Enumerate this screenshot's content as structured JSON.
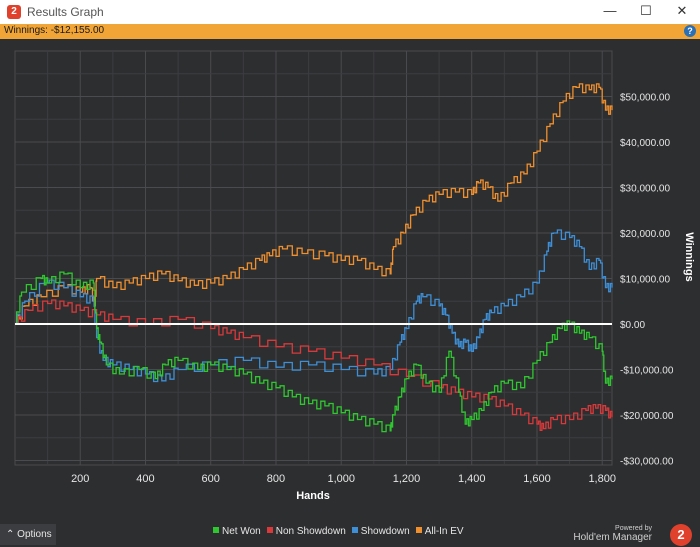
{
  "window": {
    "title": "Results Graph",
    "minimize_glyph": "—",
    "maximize_glyph": "☐",
    "close_glyph": "✕",
    "app_icon": "2"
  },
  "summary_bar": {
    "label": "Winnings:",
    "value": "-$12,155.00",
    "help_glyph": "?"
  },
  "options_label": "Options",
  "options_glyph": "⌃",
  "powered_by": "Powered by",
  "brand": "Hold'em Manager",
  "brand_logo_text": "2",
  "icons": {
    "app": "hem2-logo-icon",
    "help": "help-icon",
    "options": "chevron-up-icon",
    "brand": "hem2-logo-icon"
  },
  "chart_data": {
    "type": "line",
    "xlabel": "Hands",
    "ylabel": "Winnings",
    "xlim": [
      0,
      1830
    ],
    "ylim": [
      -31000,
      60000
    ],
    "x_ticks": [
      200,
      400,
      600,
      800,
      1000,
      1200,
      1400,
      1600,
      1800
    ],
    "x_tick_labels": [
      "200",
      "400",
      "600",
      "800",
      "1,000",
      "1,200",
      "1,400",
      "1,600",
      "1,800"
    ],
    "y_ticks": [
      50000,
      40000,
      30000,
      20000,
      10000,
      0,
      -10000,
      -20000,
      -30000
    ],
    "y_tick_labels": [
      "$50,000.00",
      "$40,000.00",
      "$30,000.00",
      "$20,000.00",
      "$10,000.00",
      "$0.00",
      "-$10,000.00",
      "-$20,000.00",
      "-$30,000.00"
    ],
    "grid": true,
    "background": "#2d2e30",
    "zero_line_color": "#ffffff",
    "series": [
      {
        "name": "All-In EV",
        "color": "#ef8f2e",
        "points": [
          [
            0,
            0
          ],
          [
            30,
            4000
          ],
          [
            80,
            6000
          ],
          [
            150,
            8000
          ],
          [
            200,
            7000
          ],
          [
            230,
            8000
          ],
          [
            245,
            4000
          ],
          [
            250,
            10000
          ],
          [
            300,
            8000
          ],
          [
            350,
            9000
          ],
          [
            400,
            10000
          ],
          [
            450,
            11000
          ],
          [
            500,
            9500
          ],
          [
            550,
            8500
          ],
          [
            600,
            9000
          ],
          [
            650,
            10000
          ],
          [
            700,
            12000
          ],
          [
            750,
            14000
          ],
          [
            780,
            15000
          ],
          [
            820,
            16500
          ],
          [
            880,
            15500
          ],
          [
            950,
            15000
          ],
          [
            1000,
            14000
          ],
          [
            1050,
            14000
          ],
          [
            1100,
            12000
          ],
          [
            1150,
            11000
          ],
          [
            1160,
            17000
          ],
          [
            1190,
            20000
          ],
          [
            1220,
            24000
          ],
          [
            1260,
            27000
          ],
          [
            1300,
            28500
          ],
          [
            1350,
            29000
          ],
          [
            1400,
            28500
          ],
          [
            1420,
            31000
          ],
          [
            1450,
            30000
          ],
          [
            1480,
            27000
          ],
          [
            1520,
            31000
          ],
          [
            1560,
            33000
          ],
          [
            1600,
            38000
          ],
          [
            1640,
            44000
          ],
          [
            1680,
            49000
          ],
          [
            1720,
            52000
          ],
          [
            1760,
            51500
          ],
          [
            1790,
            52000
          ],
          [
            1810,
            47000
          ],
          [
            1830,
            47000
          ]
        ]
      },
      {
        "name": "Showdown",
        "color": "#3e8fd6",
        "points": [
          [
            0,
            0
          ],
          [
            30,
            5000
          ],
          [
            90,
            9000
          ],
          [
            150,
            8000
          ],
          [
            200,
            6000
          ],
          [
            240,
            5000
          ],
          [
            250,
            -3000
          ],
          [
            270,
            -8000
          ],
          [
            300,
            -9000
          ],
          [
            350,
            -10000
          ],
          [
            400,
            -11000
          ],
          [
            450,
            -12500
          ],
          [
            500,
            -10000
          ],
          [
            600,
            -9000
          ],
          [
            700,
            -8000
          ],
          [
            800,
            -9500
          ],
          [
            900,
            -9000
          ],
          [
            1000,
            -10000
          ],
          [
            1100,
            -11000
          ],
          [
            1150,
            -10000
          ],
          [
            1180,
            -4000
          ],
          [
            1200,
            -1000
          ],
          [
            1230,
            5000
          ],
          [
            1250,
            6000
          ],
          [
            1300,
            4000
          ],
          [
            1320,
            2000
          ],
          [
            1340,
            -2000
          ],
          [
            1360,
            -5000
          ],
          [
            1380,
            -4000
          ],
          [
            1400,
            -6000
          ],
          [
            1420,
            -3000
          ],
          [
            1440,
            1000
          ],
          [
            1460,
            2500
          ],
          [
            1500,
            4000
          ],
          [
            1550,
            6000
          ],
          [
            1600,
            9000
          ],
          [
            1630,
            16000
          ],
          [
            1650,
            20000
          ],
          [
            1700,
            19000
          ],
          [
            1730,
            17000
          ],
          [
            1760,
            12000
          ],
          [
            1790,
            14000
          ],
          [
            1810,
            8000
          ],
          [
            1830,
            8000
          ]
        ]
      },
      {
        "name": "Non Showdown",
        "color": "#d9393a",
        "points": [
          [
            0,
            0
          ],
          [
            40,
            3000
          ],
          [
            100,
            4500
          ],
          [
            150,
            4000
          ],
          [
            200,
            3000
          ],
          [
            250,
            2000
          ],
          [
            300,
            1000
          ],
          [
            400,
            0
          ],
          [
            500,
            1000
          ],
          [
            600,
            -1000
          ],
          [
            650,
            -2000
          ],
          [
            700,
            -3000
          ],
          [
            800,
            -5000
          ],
          [
            900,
            -6000
          ],
          [
            1000,
            -7500
          ],
          [
            1100,
            -9000
          ],
          [
            1200,
            -11500
          ],
          [
            1300,
            -14000
          ],
          [
            1350,
            -15000
          ],
          [
            1400,
            -16000
          ],
          [
            1450,
            -16500
          ],
          [
            1500,
            -18000
          ],
          [
            1550,
            -20000
          ],
          [
            1600,
            -22000
          ],
          [
            1620,
            -23000
          ],
          [
            1650,
            -21000
          ],
          [
            1700,
            -21000
          ],
          [
            1750,
            -19000
          ],
          [
            1780,
            -18500
          ],
          [
            1810,
            -19000
          ],
          [
            1830,
            -20500
          ]
        ]
      },
      {
        "name": "Net Won",
        "color": "#2ec82e",
        "points": [
          [
            0,
            0
          ],
          [
            20,
            7000
          ],
          [
            80,
            10000
          ],
          [
            100,
            9000
          ],
          [
            150,
            11000
          ],
          [
            200,
            8000
          ],
          [
            240,
            9000
          ],
          [
            250,
            -1000
          ],
          [
            260,
            -4000
          ],
          [
            280,
            -9000
          ],
          [
            320,
            -11000
          ],
          [
            380,
            -10000
          ],
          [
            430,
            -12000
          ],
          [
            460,
            -9000
          ],
          [
            500,
            -8000
          ],
          [
            560,
            -10000
          ],
          [
            600,
            -9000
          ],
          [
            650,
            -10000
          ],
          [
            700,
            -11000
          ],
          [
            750,
            -13000
          ],
          [
            800,
            -14000
          ],
          [
            850,
            -16000
          ],
          [
            900,
            -17500
          ],
          [
            950,
            -18000
          ],
          [
            1000,
            -19500
          ],
          [
            1050,
            -21000
          ],
          [
            1100,
            -22000
          ],
          [
            1150,
            -23500
          ],
          [
            1160,
            -20000
          ],
          [
            1180,
            -16000
          ],
          [
            1200,
            -12000
          ],
          [
            1230,
            -9000
          ],
          [
            1260,
            -13000
          ],
          [
            1300,
            -15000
          ],
          [
            1330,
            -6000
          ],
          [
            1360,
            -15000
          ],
          [
            1380,
            -22000
          ],
          [
            1400,
            -21000
          ],
          [
            1430,
            -19000
          ],
          [
            1460,
            -15000
          ],
          [
            1500,
            -13000
          ],
          [
            1550,
            -14000
          ],
          [
            1600,
            -8000
          ],
          [
            1640,
            -4000
          ],
          [
            1670,
            -1000
          ],
          [
            1700,
            0
          ],
          [
            1730,
            -2000
          ],
          [
            1760,
            -3000
          ],
          [
            1800,
            -6000
          ],
          [
            1810,
            -13000
          ],
          [
            1830,
            -12155
          ]
        ]
      }
    ]
  }
}
